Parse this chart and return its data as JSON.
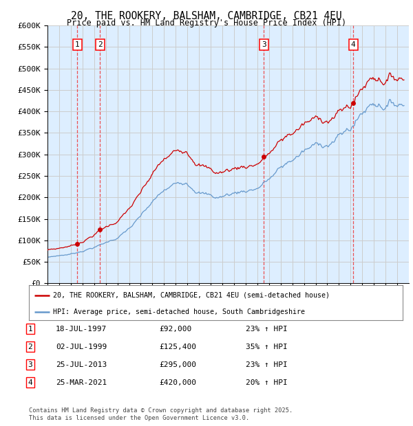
{
  "title_line1": "20, THE ROOKERY, BALSHAM, CAMBRIDGE, CB21 4EU",
  "title_line2": "Price paid vs. HM Land Registry's House Price Index (HPI)",
  "ylabel_ticks": [
    "£0",
    "£50K",
    "£100K",
    "£150K",
    "£200K",
    "£250K",
    "£300K",
    "£350K",
    "£400K",
    "£450K",
    "£500K",
    "£550K",
    "£600K"
  ],
  "ytick_values": [
    0,
    50000,
    100000,
    150000,
    200000,
    250000,
    300000,
    350000,
    400000,
    450000,
    500000,
    550000,
    600000
  ],
  "xmin": 1995.0,
  "xmax": 2026.0,
  "ymin": 0,
  "ymax": 600000,
  "sale_dates_num": [
    1997.54,
    1999.5,
    2013.56,
    2021.23
  ],
  "sale_prices": [
    92000,
    125400,
    295000,
    420000
  ],
  "sale_labels": [
    "1",
    "2",
    "3",
    "4"
  ],
  "red_line_color": "#cc0000",
  "blue_line_color": "#6699cc",
  "background_color": "#ddeeff",
  "plot_bg_color": "#ffffff",
  "grid_color": "#cccccc",
  "legend_line1": "20, THE ROOKERY, BALSHAM, CAMBRIDGE, CB21 4EU (semi-detached house)",
  "legend_line2": "HPI: Average price, semi-detached house, South Cambridgeshire",
  "table_rows": [
    [
      "1",
      "18-JUL-1997",
      "£92,000",
      "23% ↑ HPI"
    ],
    [
      "2",
      "02-JUL-1999",
      "£125,400",
      "35% ↑ HPI"
    ],
    [
      "3",
      "25-JUL-2013",
      "£295,000",
      "23% ↑ HPI"
    ],
    [
      "4",
      "25-MAR-2021",
      "£420,000",
      "20% ↑ HPI"
    ]
  ],
  "footer_text": "Contains HM Land Registry data © Crown copyright and database right 2025.\nThis data is licensed under the Open Government Licence v3.0.",
  "dashed_line_color": "#ee3333"
}
